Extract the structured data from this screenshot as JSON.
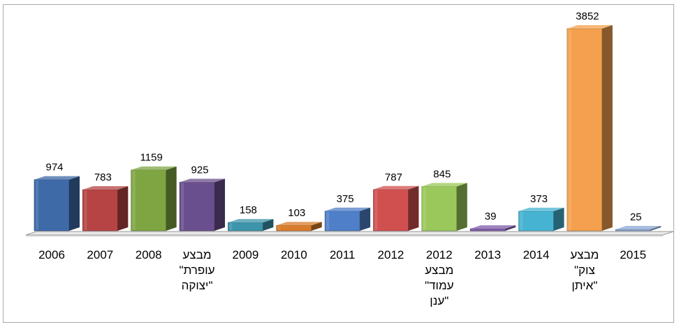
{
  "chart_data": {
    "type": "bar",
    "style": "3d-column",
    "title": "",
    "xlabel": "",
    "ylabel": "",
    "grid": false,
    "legend": "none",
    "ylim": [
      0,
      3852
    ],
    "categories": [
      [
        "2006"
      ],
      [
        "2007"
      ],
      [
        "2008"
      ],
      [
        "מבצע",
        "\"עופרת",
        "יצוקה\""
      ],
      [
        "2009"
      ],
      [
        "2010"
      ],
      [
        "2011"
      ],
      [
        "2012"
      ],
      [
        "2012",
        "מבצע",
        "\"עמוד",
        "ענן\""
      ],
      [
        "2013"
      ],
      [
        "2014"
      ],
      [
        "מבצע",
        "\"צוק",
        "איתן\""
      ],
      [
        "2015"
      ]
    ],
    "values": [
      974,
      783,
      1159,
      925,
      158,
      103,
      375,
      787,
      845,
      39,
      373,
      3852,
      25
    ],
    "colors": [
      "#3e6aa8",
      "#b64444",
      "#7ea542",
      "#6a4f8e",
      "#3d95ab",
      "#d97c2b",
      "#4f7fc8",
      "#d05050",
      "#9bc85a",
      "#7e5ba8",
      "#45b3d1",
      "#f4a04e",
      "#8ba5d4"
    ]
  }
}
